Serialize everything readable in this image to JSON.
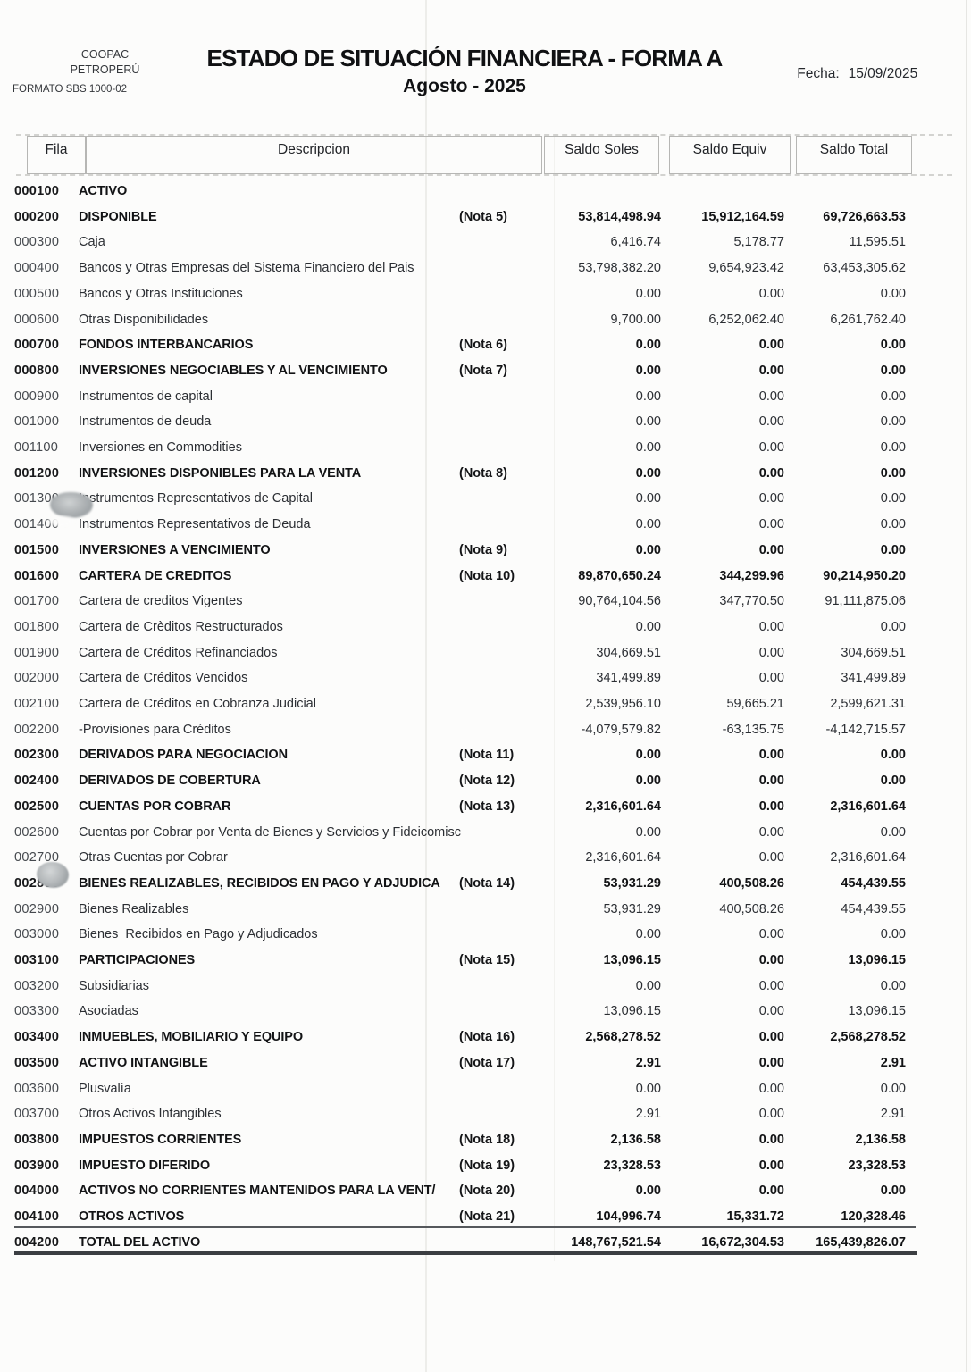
{
  "document": {
    "org": {
      "line1": "COOPAC",
      "line2": "PETROPERÚ",
      "format": "FORMATO SBS 1000-02"
    },
    "title": "ESTADO DE SITUACIÓN FINANCIERA - FORMA A",
    "period": "Agosto - 2025",
    "date_label": "Fecha:",
    "date_value": "15/09/2025"
  },
  "table": {
    "columns": [
      "Fila",
      "Descripcion",
      "Saldo Soles",
      "Saldo Equiv",
      "Saldo Total"
    ],
    "rows": [
      {
        "code": "000100",
        "desc": "ACTIVO",
        "nota": "",
        "soles": "",
        "equiv": "",
        "total": "",
        "bold": true
      },
      {
        "code": "000200",
        "desc": "DISPONIBLE",
        "nota": "(Nota 5)",
        "soles": "53,814,498.94",
        "equiv": "15,912,164.59",
        "total": "69,726,663.53",
        "bold": true
      },
      {
        "code": "000300",
        "desc": "Caja",
        "nota": "",
        "soles": "6,416.74",
        "equiv": "5,178.77",
        "total": "11,595.51",
        "bold": false
      },
      {
        "code": "000400",
        "desc": "Bancos y Otras Empresas del Sistema Financiero del Pais",
        "nota": "",
        "soles": "53,798,382.20",
        "equiv": "9,654,923.42",
        "total": "63,453,305.62",
        "bold": false
      },
      {
        "code": "000500",
        "desc": "Bancos y Otras Instituciones",
        "nota": "",
        "soles": "0.00",
        "equiv": "0.00",
        "total": "0.00",
        "bold": false
      },
      {
        "code": "000600",
        "desc": "Otras Disponibilidades",
        "nota": "",
        "soles": "9,700.00",
        "equiv": "6,252,062.40",
        "total": "6,261,762.40",
        "bold": false
      },
      {
        "code": "000700",
        "desc": "FONDOS INTERBANCARIOS",
        "nota": "(Nota 6)",
        "soles": "0.00",
        "equiv": "0.00",
        "total": "0.00",
        "bold": true
      },
      {
        "code": "000800",
        "desc": "INVERSIONES NEGOCIABLES Y AL VENCIMIENTO",
        "nota": "(Nota 7)",
        "soles": "0.00",
        "equiv": "0.00",
        "total": "0.00",
        "bold": true
      },
      {
        "code": "000900",
        "desc": "Instrumentos de capital",
        "nota": "",
        "soles": "0.00",
        "equiv": "0.00",
        "total": "0.00",
        "bold": false
      },
      {
        "code": "001000",
        "desc": "Instrumentos de deuda",
        "nota": "",
        "soles": "0.00",
        "equiv": "0.00",
        "total": "0.00",
        "bold": false
      },
      {
        "code": "001100",
        "desc": "Inversiones en Commodities",
        "nota": "",
        "soles": "0.00",
        "equiv": "0.00",
        "total": "0.00",
        "bold": false
      },
      {
        "code": "001200",
        "desc": "INVERSIONES DISPONIBLES PARA LA VENTA",
        "nota": "(Nota 8)",
        "soles": "0.00",
        "equiv": "0.00",
        "total": "0.00",
        "bold": true
      },
      {
        "code": "001300",
        "desc": "Instrumentos Representativos de Capital",
        "nota": "",
        "soles": "0.00",
        "equiv": "0.00",
        "total": "0.00",
        "bold": false
      },
      {
        "code": "001400",
        "desc": "Instrumentos Representativos de Deuda",
        "nota": "",
        "soles": "0.00",
        "equiv": "0.00",
        "total": "0.00",
        "bold": false
      },
      {
        "code": "001500",
        "desc": "INVERSIONES A VENCIMIENTO",
        "nota": "(Nota 9)",
        "soles": "0.00",
        "equiv": "0.00",
        "total": "0.00",
        "bold": true
      },
      {
        "code": "001600",
        "desc": "CARTERA DE CREDITOS",
        "nota": "(Nota 10)",
        "soles": "89,870,650.24",
        "equiv": "344,299.96",
        "total": "90,214,950.20",
        "bold": true
      },
      {
        "code": "001700",
        "desc": "Cartera de creditos Vigentes",
        "nota": "",
        "soles": "90,764,104.56",
        "equiv": "347,770.50",
        "total": "91,111,875.06",
        "bold": false
      },
      {
        "code": "001800",
        "desc": "Cartera de Crèditos Restructurados",
        "nota": "",
        "soles": "0.00",
        "equiv": "0.00",
        "total": "0.00",
        "bold": false
      },
      {
        "code": "001900",
        "desc": "Cartera de Créditos Refinanciados",
        "nota": "",
        "soles": "304,669.51",
        "equiv": "0.00",
        "total": "304,669.51",
        "bold": false
      },
      {
        "code": "002000",
        "desc": "Cartera de Créditos Vencidos",
        "nota": "",
        "soles": "341,499.89",
        "equiv": "0.00",
        "total": "341,499.89",
        "bold": false
      },
      {
        "code": "002100",
        "desc": "Cartera de Créditos en Cobranza Judicial",
        "nota": "",
        "soles": "2,539,956.10",
        "equiv": "59,665.21",
        "total": "2,599,621.31",
        "bold": false
      },
      {
        "code": "002200",
        "desc": "-Provisiones para Créditos",
        "nota": "",
        "soles": "-4,079,579.82",
        "equiv": "-63,135.75",
        "total": "-4,142,715.57",
        "bold": false
      },
      {
        "code": "002300",
        "desc": "DERIVADOS PARA NEGOCIACION",
        "nota": "(Nota 11)",
        "soles": "0.00",
        "equiv": "0.00",
        "total": "0.00",
        "bold": true
      },
      {
        "code": "002400",
        "desc": "DERIVADOS DE COBERTURA",
        "nota": "(Nota 12)",
        "soles": "0.00",
        "equiv": "0.00",
        "total": "0.00",
        "bold": true
      },
      {
        "code": "002500",
        "desc": "CUENTAS POR COBRAR",
        "nota": "(Nota 13)",
        "soles": "2,316,601.64",
        "equiv": "0.00",
        "total": "2,316,601.64",
        "bold": true
      },
      {
        "code": "002600",
        "desc": "Cuentas por Cobrar por Venta de Bienes y Servicios y Fideicomisc",
        "nota": "",
        "soles": "0.00",
        "equiv": "0.00",
        "total": "0.00",
        "bold": false
      },
      {
        "code": "002700",
        "desc": "Otras Cuentas por Cobrar",
        "nota": "",
        "soles": "2,316,601.64",
        "equiv": "0.00",
        "total": "2,316,601.64",
        "bold": false
      },
      {
        "code": "002800",
        "desc": "BIENES REALIZABLES, RECIBIDOS EN PAGO Y ADJUDICA",
        "nota": "(Nota 14)",
        "soles": "53,931.29",
        "equiv": "400,508.26",
        "total": "454,439.55",
        "bold": true
      },
      {
        "code": "002900",
        "desc": "Bienes Realizables",
        "nota": "",
        "soles": "53,931.29",
        "equiv": "400,508.26",
        "total": "454,439.55",
        "bold": false
      },
      {
        "code": "003000",
        "desc": "Bienes  Recibidos en Pago y Adjudicados",
        "nota": "",
        "soles": "0.00",
        "equiv": "0.00",
        "total": "0.00",
        "bold": false
      },
      {
        "code": "003100",
        "desc": "PARTICIPACIONES",
        "nota": "(Nota 15)",
        "soles": "13,096.15",
        "equiv": "0.00",
        "total": "13,096.15",
        "bold": true
      },
      {
        "code": "003200",
        "desc": "Subsidiarias",
        "nota": "",
        "soles": "0.00",
        "equiv": "0.00",
        "total": "0.00",
        "bold": false
      },
      {
        "code": "003300",
        "desc": "Asociadas",
        "nota": "",
        "soles": "13,096.15",
        "equiv": "0.00",
        "total": "13,096.15",
        "bold": false
      },
      {
        "code": "003400",
        "desc": "INMUEBLES, MOBILIARIO Y EQUIPO",
        "nota": "(Nota 16)",
        "soles": "2,568,278.52",
        "equiv": "0.00",
        "total": "2,568,278.52",
        "bold": true
      },
      {
        "code": "003500",
        "desc": "ACTIVO INTANGIBLE",
        "nota": "(Nota 17)",
        "soles": "2.91",
        "equiv": "0.00",
        "total": "2.91",
        "bold": true
      },
      {
        "code": "003600",
        "desc": "Plusvalía",
        "nota": "",
        "soles": "0.00",
        "equiv": "0.00",
        "total": "0.00",
        "bold": false
      },
      {
        "code": "003700",
        "desc": "Otros Activos Intangibles",
        "nota": "",
        "soles": "2.91",
        "equiv": "0.00",
        "total": "2.91",
        "bold": false
      },
      {
        "code": "003800",
        "desc": "IMPUESTOS CORRIENTES",
        "nota": "(Nota 18)",
        "soles": "2,136.58",
        "equiv": "0.00",
        "total": "2,136.58",
        "bold": true
      },
      {
        "code": "003900",
        "desc": "IMPUESTO DIFERIDO",
        "nota": "(Nota 19)",
        "soles": "23,328.53",
        "equiv": "0.00",
        "total": "23,328.53",
        "bold": true
      },
      {
        "code": "004000",
        "desc": "ACTIVOS NO CORRIENTES MANTENIDOS PARA LA VENT/",
        "nota": "(Nota 20)",
        "soles": "0.00",
        "equiv": "0.00",
        "total": "0.00",
        "bold": true
      },
      {
        "code": "004100",
        "desc": "OTROS ACTIVOS",
        "nota": "(Nota 21)",
        "soles": "104,996.74",
        "equiv": "15,331.72",
        "total": "120,328.46",
        "bold": true
      },
      {
        "code": "004200",
        "desc": "TOTAL DEL ACTIVO",
        "nota": "",
        "soles": "148,767,521.54",
        "equiv": "16,672,304.53",
        "total": "165,439,826.07",
        "bold": true,
        "is_total": true
      }
    ]
  }
}
